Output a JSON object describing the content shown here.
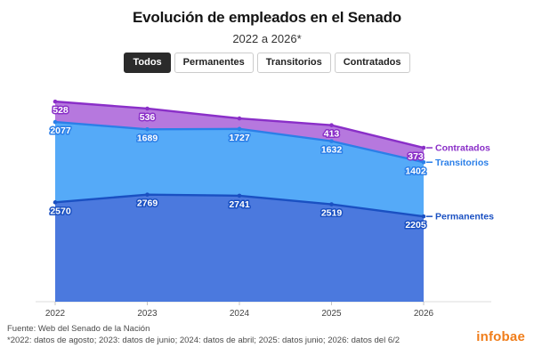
{
  "header": {
    "title": "Evolución de empleados en el Senado",
    "subtitle": "2022 a 2026*",
    "tabs": [
      {
        "id": "todos",
        "label": "Todos",
        "active": true
      },
      {
        "id": "permanentes",
        "label": "Permanentes",
        "active": false
      },
      {
        "id": "transitorios",
        "label": "Transitorios",
        "active": false
      },
      {
        "id": "contratados",
        "label": "Contratados",
        "active": false
      }
    ]
  },
  "chart_data": {
    "type": "area",
    "stacked": true,
    "grid": false,
    "legend_position": "end-of-line",
    "x": [
      "2022",
      "2023",
      "2024",
      "2025",
      "2026"
    ],
    "ylim": [
      0,
      5500
    ],
    "series": [
      {
        "name": "Permanentes",
        "values": [
          2570,
          2769,
          2741,
          2519,
          2205
        ],
        "point_labels": [
          "2570",
          "2769",
          "2741",
          "2519",
          "2205"
        ],
        "fill_color": "#4b79de",
        "line_color": "#1a50c2"
      },
      {
        "name": "Transitorios",
        "values": [
          2077,
          1689,
          1727,
          1632,
          1402
        ],
        "point_labels": [
          "2077",
          "1689",
          "1727",
          "1632",
          "1402"
        ],
        "fill_color": "#55aaf8",
        "line_color": "#2b7fe8"
      },
      {
        "name": "Contratados",
        "values": [
          528,
          536,
          270,
          413,
          373
        ],
        "point_labels": [
          "528",
          "536",
          "",
          "413",
          "373"
        ],
        "note": "2024 point is unlabeled in the chart; 270 estimated from band height",
        "fill_color": "#b678de",
        "line_color": "#8a2fc8"
      }
    ],
    "axis_line_color": "#dcdcdc",
    "tick_color": "#c4c4c4"
  },
  "footer": {
    "source": "Fuente: Web del Senado de la Nación",
    "footnote": "*2022: datos de agosto; 2023: datos de junio; 2024: datos de abril; 2025: datos junio; 2026: datos del 6/2",
    "logo_text": "infobae",
    "logo_color": "#f07d1a"
  }
}
